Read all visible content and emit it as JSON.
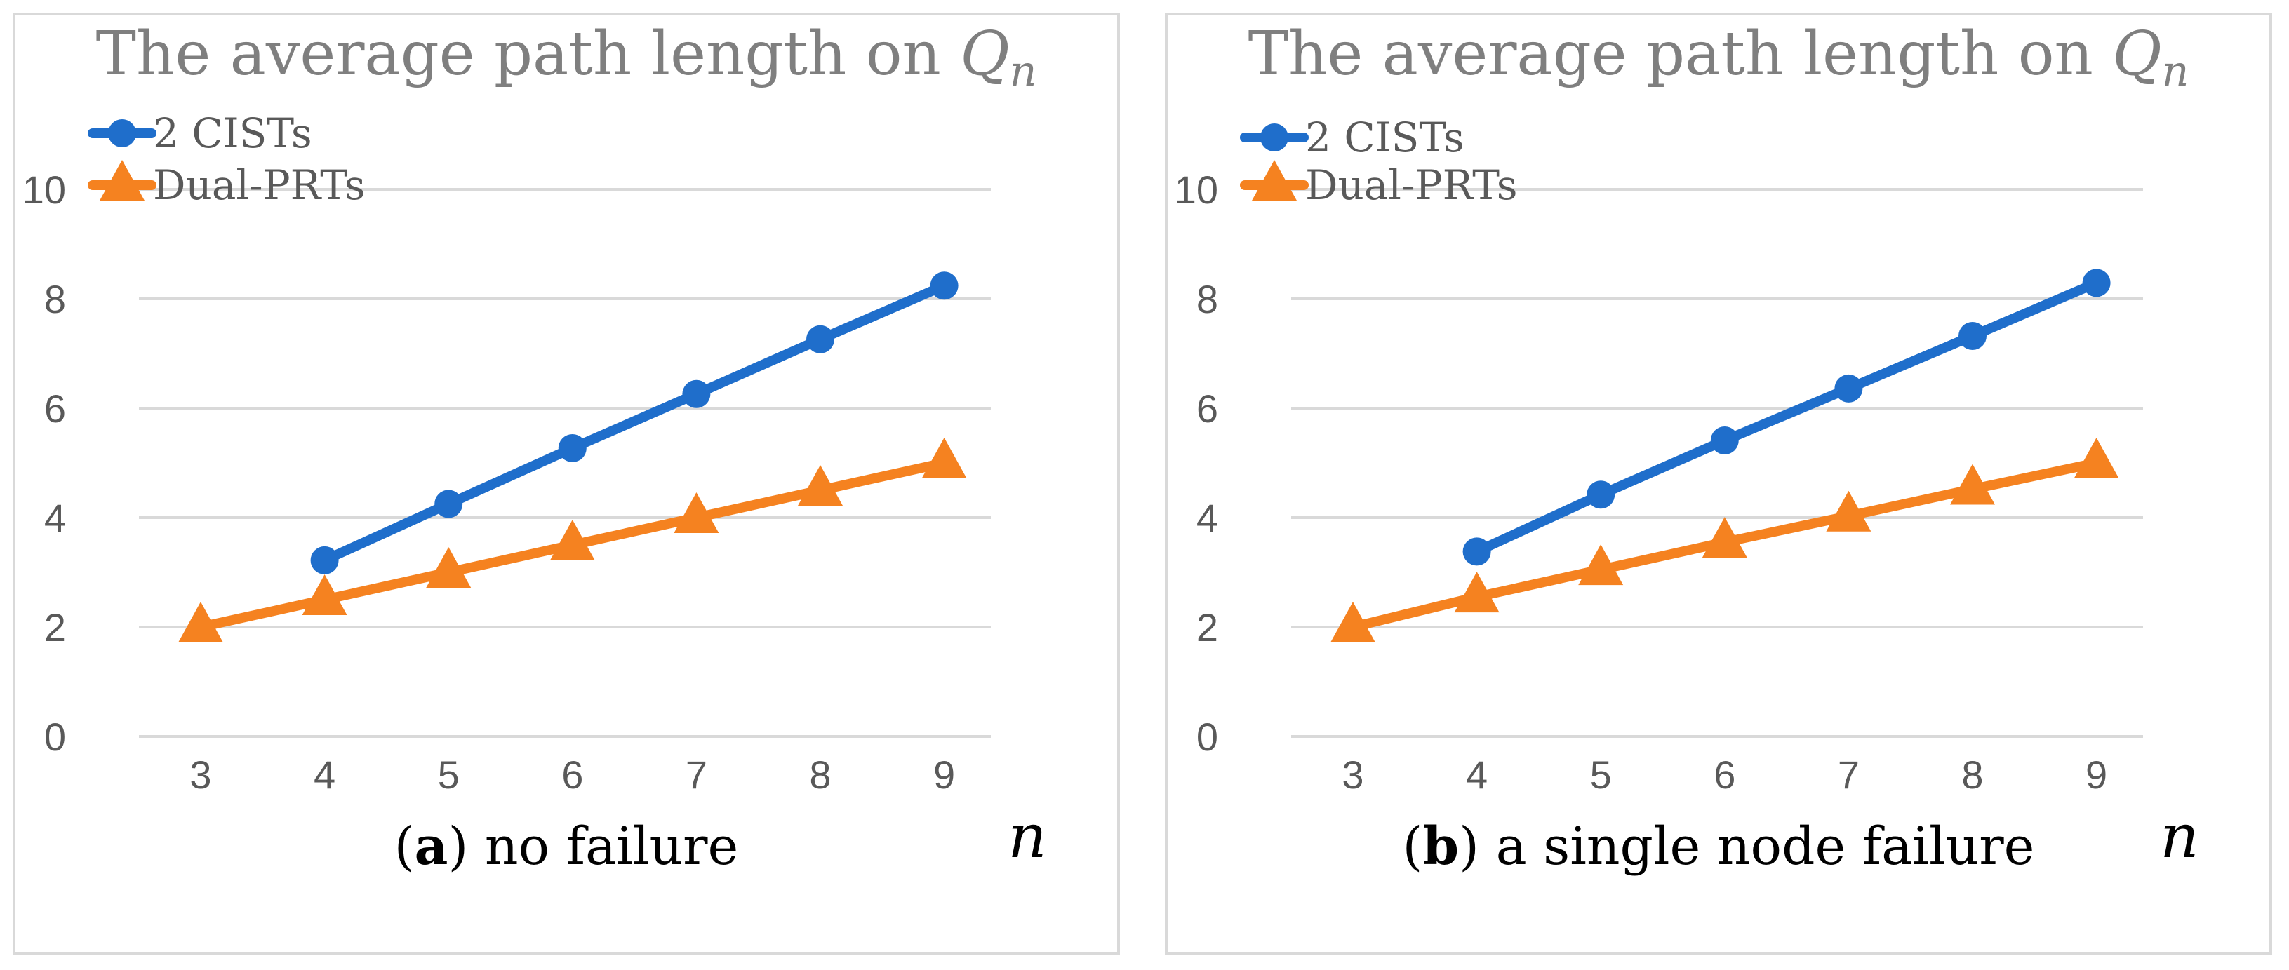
{
  "chart_data": [
    {
      "type": "line",
      "title": "The average path length on",
      "title_symbol": "Q",
      "title_subscript": "n",
      "caption_label": "a",
      "caption_text": "no failure",
      "xlabel": "n",
      "ylabel": "",
      "categories": [
        3,
        4,
        5,
        6,
        7,
        8,
        9
      ],
      "ylim": [
        0,
        10
      ],
      "yticks": [
        0,
        2,
        4,
        6,
        8,
        10
      ],
      "grid": true,
      "legend_position": "top-left",
      "series": [
        {
          "name": "2 CISTs",
          "color": "#1f6ecb",
          "marker": "circle",
          "values": [
            null,
            3.22,
            4.25,
            5.27,
            6.26,
            7.26,
            8.24
          ]
        },
        {
          "name": "Dual-PRTs",
          "color": "#f58220",
          "marker": "triangle",
          "values": [
            2.0,
            2.5,
            3.0,
            3.5,
            4.0,
            4.5,
            5.0
          ]
        }
      ]
    },
    {
      "type": "line",
      "title": "The average path length on",
      "title_symbol": "Q",
      "title_subscript": "n",
      "caption_label": "b",
      "caption_text": "a single node failure",
      "xlabel": "n",
      "ylabel": "",
      "categories": [
        3,
        4,
        5,
        6,
        7,
        8,
        9
      ],
      "ylim": [
        0,
        10
      ],
      "yticks": [
        0,
        2,
        4,
        6,
        8,
        10
      ],
      "grid": true,
      "legend_position": "top-left",
      "series": [
        {
          "name": "2 CISTs",
          "color": "#1f6ecb",
          "marker": "circle",
          "values": [
            null,
            3.38,
            4.42,
            5.41,
            6.36,
            7.32,
            8.29
          ]
        },
        {
          "name": "Dual-PRTs",
          "color": "#f58220",
          "marker": "triangle",
          "values": [
            2.0,
            2.55,
            3.05,
            3.55,
            4.03,
            4.52,
            5.0
          ]
        }
      ]
    }
  ]
}
